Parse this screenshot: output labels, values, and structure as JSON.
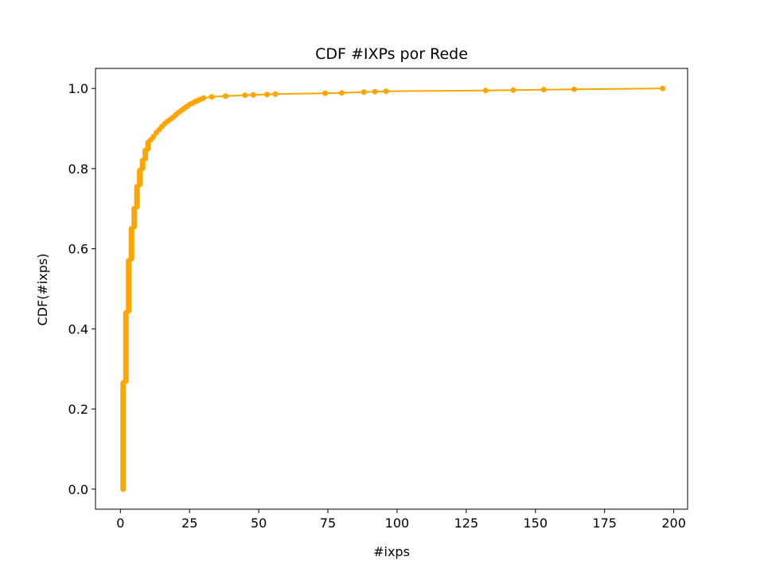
{
  "chart_data": {
    "type": "line",
    "title": "CDF #IXPs por Rede",
    "xlabel": "#ixps",
    "ylabel": "CDF(#ixps)",
    "xlim": [
      -9,
      205
    ],
    "ylim": [
      -0.05,
      1.05
    ],
    "xticks": [
      0,
      25,
      50,
      75,
      100,
      125,
      150,
      175,
      200
    ],
    "yticks": [
      0.0,
      0.2,
      0.4,
      0.6,
      0.8,
      1.0
    ],
    "xtick_labels": [
      "0",
      "25",
      "50",
      "75",
      "100",
      "125",
      "150",
      "175",
      "200"
    ],
    "ytick_labels": [
      "0.0",
      "0.2",
      "0.4",
      "0.6",
      "0.8",
      "1.0"
    ],
    "grid": false,
    "legend": "none",
    "series": [
      {
        "color": "#ffa500",
        "marker": "circle",
        "step_segments": [
          [
            1,
            0.0,
            0.265
          ],
          [
            2,
            0.27,
            0.44
          ],
          [
            3,
            0.445,
            0.57
          ],
          [
            4,
            0.575,
            0.65
          ],
          [
            5,
            0.655,
            0.7
          ],
          [
            6,
            0.705,
            0.755
          ],
          [
            7,
            0.76,
            0.795
          ],
          [
            8,
            0.8,
            0.82
          ],
          [
            9,
            0.825,
            0.845
          ],
          [
            10,
            0.85,
            0.865
          ]
        ],
        "x": [
          11,
          12,
          13,
          14,
          15,
          16,
          17,
          18,
          19,
          20,
          21,
          22,
          23,
          24,
          25,
          26,
          27,
          28,
          29,
          30,
          33,
          38,
          45,
          48,
          53,
          56,
          74,
          80,
          88,
          92,
          96,
          132,
          142,
          153,
          164,
          196
        ],
        "y": [
          0.872,
          0.88,
          0.89,
          0.897,
          0.905,
          0.912,
          0.918,
          0.923,
          0.928,
          0.934,
          0.94,
          0.945,
          0.95,
          0.955,
          0.96,
          0.963,
          0.967,
          0.97,
          0.973,
          0.976,
          0.979,
          0.981,
          0.983,
          0.984,
          0.985,
          0.986,
          0.988,
          0.989,
          0.991,
          0.992,
          0.993,
          0.995,
          0.996,
          0.997,
          0.998,
          1.0
        ]
      }
    ]
  }
}
